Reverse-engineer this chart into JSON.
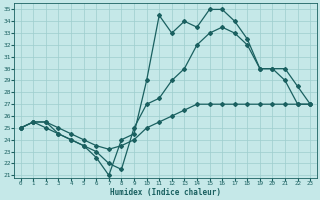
{
  "xlabel": "Humidex (Indice chaleur)",
  "xlim": [
    -0.5,
    23.5
  ],
  "ylim": [
    20.8,
    35.5
  ],
  "yticks": [
    21,
    22,
    23,
    24,
    25,
    26,
    27,
    28,
    29,
    30,
    31,
    32,
    33,
    34,
    35
  ],
  "xticks": [
    0,
    1,
    2,
    3,
    4,
    5,
    6,
    7,
    8,
    9,
    10,
    11,
    12,
    13,
    14,
    15,
    16,
    17,
    18,
    19,
    20,
    21,
    22,
    23
  ],
  "bg_color": "#c5e8e8",
  "grid_color": "#9ecece",
  "line_color": "#1a6060",
  "line_width": 0.9,
  "marker": "D",
  "marker_size": 2.0,
  "curve1_x": [
    0,
    1,
    2,
    3,
    4,
    5,
    6,
    7,
    8,
    9,
    10,
    11,
    12,
    13,
    14,
    15,
    16,
    17,
    18,
    19,
    20,
    21,
    22,
    23
  ],
  "curve1_y": [
    25,
    25.5,
    25.5,
    24.5,
    24,
    23.5,
    22.5,
    21,
    24,
    24.5,
    29,
    34.5,
    33,
    34,
    33.5,
    35,
    35,
    34,
    32.5,
    30,
    30,
    30,
    28.5,
    27
  ],
  "curve2_x": [
    0,
    1,
    2,
    3,
    4,
    5,
    6,
    7,
    8,
    9,
    10,
    11,
    12,
    13,
    14,
    15,
    16,
    17,
    18,
    19,
    20,
    21,
    22,
    23
  ],
  "curve2_y": [
    25,
    25.5,
    25,
    24.5,
    24,
    23.5,
    23,
    22,
    21.5,
    25,
    27,
    27.5,
    29,
    30,
    32,
    33,
    33.5,
    33,
    32,
    30,
    30,
    29,
    27,
    27
  ],
  "curve3_x": [
    0,
    1,
    2,
    3,
    4,
    5,
    6,
    7,
    8,
    9,
    10,
    11,
    12,
    13,
    14,
    15,
    16,
    17,
    18,
    19,
    20,
    21,
    22,
    23
  ],
  "curve3_y": [
    25,
    25.5,
    25.5,
    25,
    24.5,
    24,
    23.5,
    23.2,
    23.5,
    24,
    25,
    25.5,
    26,
    26.5,
    27,
    27.0,
    27.0,
    27.0,
    27.0,
    27.0,
    27.0,
    27.0,
    27.0,
    27.0
  ]
}
